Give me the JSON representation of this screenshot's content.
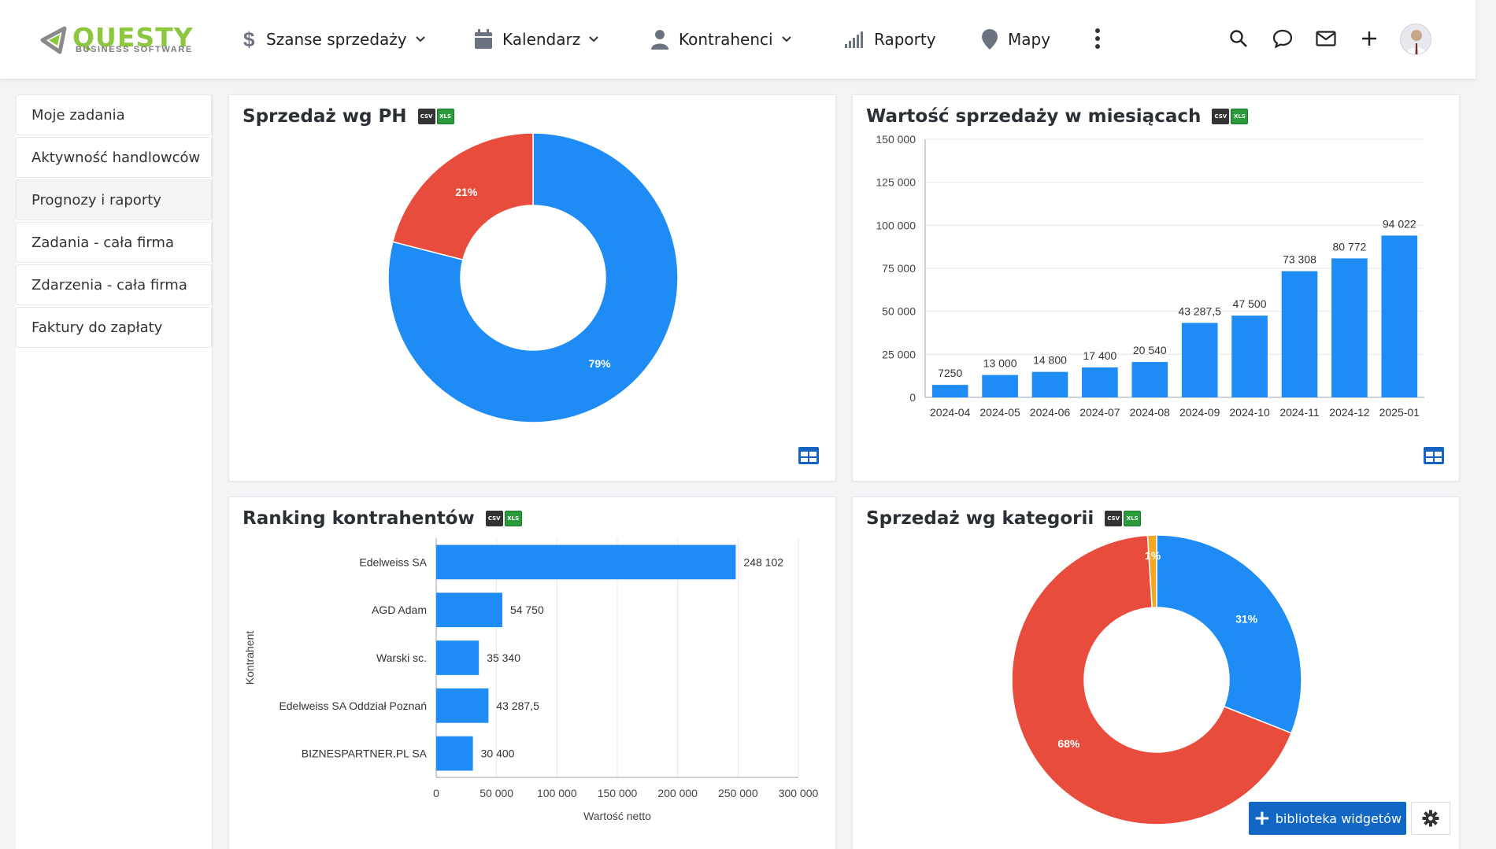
{
  "logo": {
    "word": "QUESTY",
    "sub": "BUSINESS SOFTWARE"
  },
  "nav": {
    "sales": "Szanse sprzedaży",
    "calendar": "Kalendarz",
    "contractors": "Kontrahenci",
    "reports": "Raporty",
    "maps": "Mapy"
  },
  "sidebar": {
    "items": [
      {
        "label": "Moje zadania"
      },
      {
        "label": "Aktywność handlowców"
      },
      {
        "label": "Prognozy i raporty"
      },
      {
        "label": "Zadania - cała firma"
      },
      {
        "label": "Zdarzenia - cała firma"
      },
      {
        "label": "Faktury do zapłaty"
      }
    ]
  },
  "export": {
    "csv": "CSV",
    "xls": "XLS"
  },
  "widgets": {
    "sales_by_rep": {
      "title": "Sprzedaż wg PH"
    },
    "monthly_sales": {
      "title": "Wartość sprzedaży w miesiącach"
    },
    "ranking": {
      "title": "Ranking kontrahentów"
    },
    "by_category": {
      "title": "Sprzedaż wg kategorii"
    }
  },
  "chart_data": [
    {
      "type": "pie",
      "title": "Sprzedaż wg PH",
      "donut": true,
      "slices": [
        {
          "label": "79%",
          "value": 79,
          "color": "#1f8cf5"
        },
        {
          "label": "21%",
          "value": 21,
          "color": "#e84c3d"
        }
      ]
    },
    {
      "type": "bar",
      "title": "Wartość sprzedaży w miesiącach",
      "categories": [
        "2024-04",
        "2024-05",
        "2024-06",
        "2024-07",
        "2024-08",
        "2024-09",
        "2024-10",
        "2024-11",
        "2024-12",
        "2025-01"
      ],
      "values": [
        7250,
        13000,
        14800,
        17400,
        20540,
        43287.5,
        47500,
        73308,
        80772,
        94022
      ],
      "value_labels": [
        "7250",
        "13 000",
        "14 800",
        "17 400",
        "20 540",
        "43 287,5",
        "47 500",
        "73 308",
        "80 772",
        "94 022"
      ],
      "ylim": [
        0,
        150000
      ],
      "yticks": [
        "0",
        "25 000",
        "50 000",
        "75 000",
        "100 000",
        "125 000",
        "150 000"
      ],
      "grid": true,
      "color": "#1f8cf5"
    },
    {
      "type": "bar",
      "orientation": "horizontal",
      "title": "Ranking kontrahentów",
      "categories": [
        "Edelweiss SA",
        "AGD Adam",
        "Warski sc.",
        "Edelweiss SA Oddział Poznań",
        "BIZNESPARTNER.PL SA"
      ],
      "values": [
        248102,
        54750,
        35340,
        43287.5,
        30400
      ],
      "value_labels": [
        "248 102",
        "54 750",
        "35 340",
        "43 287,5",
        "30 400"
      ],
      "xlim": [
        0,
        300000
      ],
      "xticks": [
        "0",
        "50 000",
        "100 000",
        "150 000",
        "200 000",
        "250 000",
        "300 000"
      ],
      "xlabel": "Wartość netto",
      "ylabel": "Kontrahent",
      "grid": true,
      "color": "#1f8cf5"
    },
    {
      "type": "pie",
      "title": "Sprzedaż wg kategorii",
      "donut": true,
      "slices": [
        {
          "label": "31%",
          "value": 31,
          "color": "#1f8cf5"
        },
        {
          "label": "68%",
          "value": 68,
          "color": "#e84c3d"
        },
        {
          "label": "1%",
          "value": 1,
          "color": "#f5a623"
        }
      ]
    }
  ],
  "footer": {
    "widget_library": "biblioteka widgetów"
  }
}
